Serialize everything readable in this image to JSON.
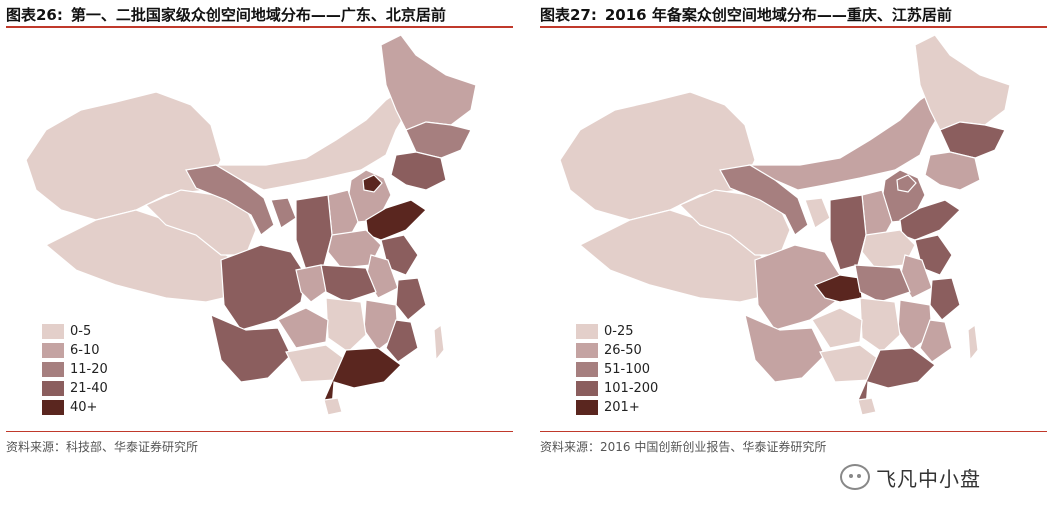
{
  "left": {
    "title_num": "图表26:",
    "title_text": "第一、二批国家级众创空间地域分布——广东、北京居前",
    "source": "资料来源：科技部、华泰证券研究所",
    "legend": [
      {
        "label": "0-5",
        "color": "#e3cfca"
      },
      {
        "label": "6-10",
        "color": "#c4a3a2"
      },
      {
        "label": "11-20",
        "color": "#a67f7f"
      },
      {
        "label": "21-40",
        "color": "#8b5e5e"
      },
      {
        "label": "40+",
        "color": "#5a261f"
      }
    ]
  },
  "right": {
    "title_num": "图表27:",
    "title_text": "2016 年备案众创空间地域分布——重庆、江苏居前",
    "source": "资料来源：2016 中国创新创业报告、华泰证券研究所",
    "legend": [
      {
        "label": "0-25",
        "color": "#e3cfca"
      },
      {
        "label": "26-50",
        "color": "#c4a3a2"
      },
      {
        "label": "51-100",
        "color": "#a67f7f"
      },
      {
        "label": "101-200",
        "color": "#8b5e5e"
      },
      {
        "label": "201+",
        "color": "#5a261f"
      }
    ]
  },
  "watermark": {
    "text": "飞凡中小盘",
    "icon": "wechat-icon"
  }
}
